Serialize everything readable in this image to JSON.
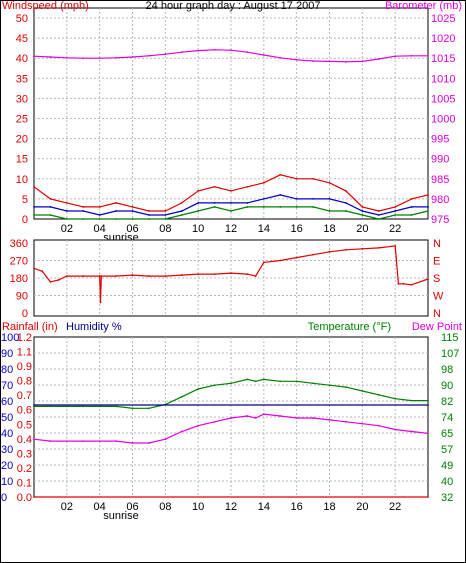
{
  "title": "24 hour graph day : August 17 2007",
  "colors": {
    "red": "#e00000",
    "magenta": "#e000e0",
    "blue": "#0000c8",
    "green": "#008000",
    "dark_blue": "#000080",
    "grid": "#b8b8b8",
    "black": "#000000"
  },
  "chart_data": [
    {
      "type": "line",
      "panel": "wind-barometer",
      "left_axis": {
        "label": "Windspeed (mph)",
        "ticks": [
          "0",
          "5",
          "10",
          "15",
          "20",
          "25",
          "30",
          "35",
          "40",
          "45",
          "50"
        ],
        "range": [
          0,
          50
        ]
      },
      "right_axis": {
        "label": "Barometer (mb)",
        "ticks": [
          "975",
          "980",
          "985",
          "990",
          "995",
          "1000",
          "1005",
          "1010",
          "1015",
          "1020",
          "1025"
        ],
        "range": [
          975,
          1025
        ]
      },
      "x_axis": {
        "ticks": [
          "02",
          "04",
          "06",
          "08",
          "10",
          "12",
          "14",
          "16",
          "18",
          "20",
          "22"
        ],
        "sunrise_label": "sunrise",
        "range_hours": [
          0,
          24
        ]
      },
      "series": [
        {
          "name": "",
          "axis": "right",
          "color": "magenta",
          "x": [
            0,
            1,
            2,
            3,
            4,
            5,
            6,
            7,
            8,
            9,
            10,
            11,
            12,
            13,
            14,
            15,
            16,
            17,
            18,
            19,
            20,
            21,
            22,
            23,
            24
          ],
          "y": [
            1015.5,
            1015.3,
            1015.1,
            1015.0,
            1015.0,
            1015.1,
            1015.3,
            1015.6,
            1016.0,
            1016.5,
            1016.9,
            1017.1,
            1017.0,
            1016.5,
            1015.8,
            1015.1,
            1014.6,
            1014.3,
            1014.2,
            1014.1,
            1014.2,
            1014.8,
            1015.5,
            1015.6,
            1015.6
          ]
        },
        {
          "name": "",
          "axis": "left",
          "color": "red",
          "x": [
            0,
            1,
            2,
            3,
            4,
            5,
            6,
            7,
            8,
            9,
            10,
            11,
            12,
            13,
            14,
            15,
            16,
            17,
            18,
            19,
            20,
            21,
            22,
            23,
            24
          ],
          "y": [
            8,
            5,
            4,
            3,
            3,
            4,
            3,
            2,
            2,
            4,
            7,
            8,
            7,
            8,
            9,
            11,
            10,
            10,
            9,
            7,
            3,
            2,
            3,
            5,
            6
          ]
        },
        {
          "name": "",
          "axis": "left",
          "color": "blue",
          "x": [
            0,
            1,
            2,
            3,
            4,
            5,
            6,
            7,
            8,
            9,
            10,
            11,
            12,
            13,
            14,
            15,
            16,
            17,
            18,
            19,
            20,
            21,
            22,
            23,
            24
          ],
          "y": [
            3,
            3,
            2,
            2,
            1,
            2,
            2,
            1,
            1,
            2,
            4,
            4,
            4,
            4,
            5,
            6,
            5,
            5,
            5,
            4,
            2,
            1,
            2,
            3,
            3
          ]
        },
        {
          "name": "",
          "axis": "left",
          "color": "green",
          "x": [
            0,
            1,
            2,
            3,
            4,
            5,
            6,
            7,
            8,
            9,
            10,
            11,
            12,
            13,
            14,
            15,
            16,
            17,
            18,
            19,
            20,
            21,
            22,
            23,
            24
          ],
          "y": [
            1,
            1,
            0,
            0,
            0,
            0,
            0,
            0,
            0,
            1,
            2,
            3,
            2,
            3,
            3,
            3,
            3,
            3,
            2,
            2,
            1,
            0,
            1,
            1,
            2
          ]
        }
      ]
    },
    {
      "type": "line",
      "panel": "wind-direction",
      "left_axis": {
        "ticks": [
          "0",
          "90",
          "180",
          "270",
          "360"
        ],
        "range": [
          0,
          360
        ]
      },
      "right_axis": {
        "ticks": [
          "N",
          "W",
          "S",
          "E",
          "N"
        ]
      },
      "series": [
        {
          "name": "",
          "color": "red",
          "x": [
            0,
            0.5,
            1,
            1.5,
            2,
            3,
            4,
            4.05,
            4.1,
            5,
            6,
            7,
            8,
            9,
            10,
            11,
            12,
            13,
            13.5,
            14,
            15,
            16,
            17,
            18,
            19,
            20,
            21,
            22,
            22.2,
            22.5,
            23,
            24
          ],
          "y": [
            230,
            215,
            160,
            170,
            190,
            190,
            190,
            55,
            190,
            190,
            195,
            190,
            190,
            195,
            200,
            200,
            205,
            200,
            190,
            260,
            270,
            285,
            300,
            315,
            325,
            330,
            335,
            345,
            150,
            150,
            145,
            175
          ]
        }
      ]
    },
    {
      "type": "line",
      "panel": "rain-humidity-temperature",
      "axes_left": [
        {
          "label": "Rainfall (in)",
          "color": "red",
          "ticks": [
            "0.0",
            "0.1",
            "0.2",
            "0.3",
            "0.4",
            "0.5",
            "0.6",
            "0.7",
            "0.8",
            "0.9",
            "1.1",
            "1.2"
          ]
        },
        {
          "label": "Humidity %",
          "color": "blue",
          "ticks": [
            "0",
            "10",
            "20",
            "30",
            "40",
            "50",
            "60",
            "70",
            "80",
            "90",
            "100"
          ],
          "range": [
            0,
            100
          ]
        }
      ],
      "axes_right": [
        {
          "label": "Temperature (°F)",
          "color": "green",
          "ticks": [
            "32",
            "40",
            "49",
            "57",
            "65",
            "74",
            "82",
            "90",
            "98",
            "107",
            "115"
          ],
          "range": [
            32,
            115
          ]
        },
        {
          "label": "Dew Point",
          "color": "magenta"
        }
      ],
      "series": [
        {
          "name": "",
          "axis": "temperature",
          "color": "green",
          "x": [
            0,
            1,
            2,
            3,
            4,
            5,
            6,
            7,
            8,
            9,
            10,
            11,
            12,
            13,
            13.5,
            14,
            15,
            16,
            17,
            18,
            19,
            20,
            21,
            22,
            23,
            24
          ],
          "y": [
            79,
            79,
            79,
            79,
            79,
            79,
            78,
            78,
            80,
            84,
            88,
            90,
            91,
            93,
            92,
            93,
            92,
            92,
            91,
            90,
            89,
            87,
            85,
            83,
            82,
            82
          ]
        },
        {
          "name": "",
          "axis": "temperature",
          "color": "magenta",
          "x": [
            0,
            1,
            2,
            3,
            4,
            5,
            6,
            7,
            8,
            9,
            10,
            11,
            12,
            13,
            13.5,
            14,
            15,
            16,
            17,
            18,
            19,
            20,
            21,
            22,
            23,
            24
          ],
          "y": [
            62,
            61,
            61,
            61,
            61,
            61,
            60,
            60,
            62,
            66,
            69,
            71,
            73,
            74,
            73,
            75,
            74,
            73,
            73,
            72,
            71,
            70,
            69,
            67,
            66,
            65
          ]
        },
        {
          "name": "",
          "axis": "rainfall",
          "color": "red",
          "x": [
            0,
            24
          ],
          "y": [
            0.0,
            0.0
          ]
        },
        {
          "name": "",
          "axis": "humidity",
          "color": "dark_blue",
          "x": [
            0,
            24
          ],
          "y": [
            57.5,
            57.5
          ]
        }
      ]
    }
  ]
}
